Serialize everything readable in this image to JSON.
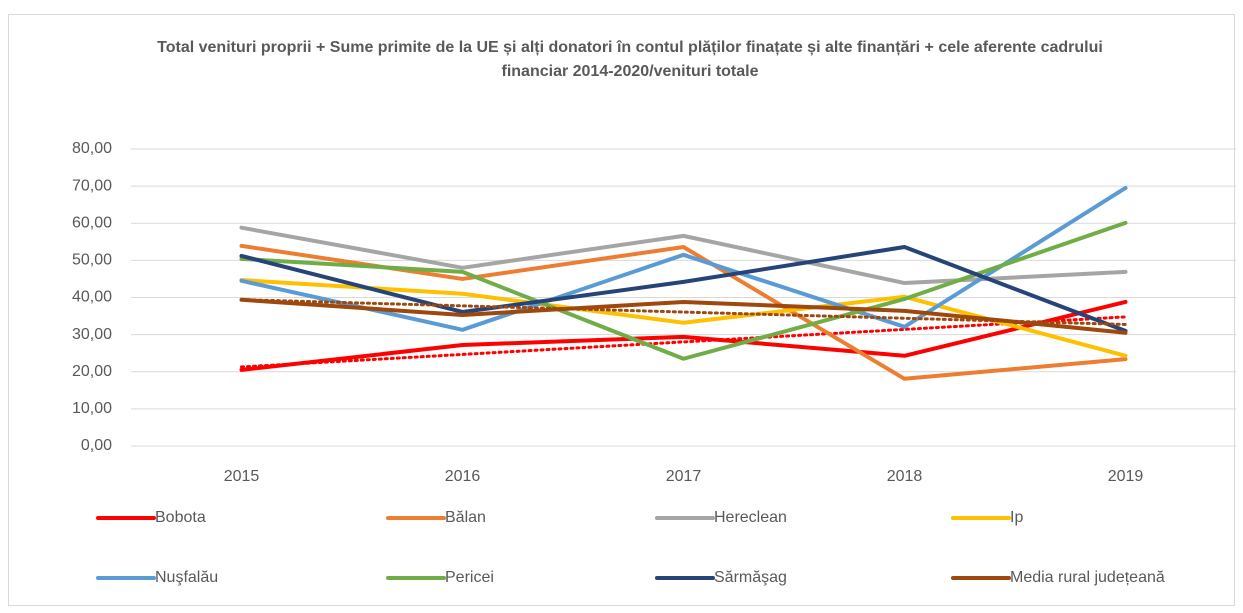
{
  "chart_data": {
    "type": "line",
    "title": "Total venituri proprii + Sume primite de la UE și alți donatori în contul plăților finațate și alte finanțări + cele aferente cadrului financiar 2014-2020/venituri totale",
    "categories": [
      "2015",
      "2016",
      "2017",
      "2018",
      "2019"
    ],
    "series": [
      {
        "name": "Bobota",
        "color": "#ff0000",
        "values": [
          20.5,
          27.2,
          29.4,
          24.3,
          38.8
        ],
        "trendline": true
      },
      {
        "name": "Bălan",
        "color": "#ed7d31",
        "values": [
          53.9,
          45.0,
          53.6,
          18.1,
          23.4
        ]
      },
      {
        "name": "Hereclean",
        "color": "#a5a5a5",
        "values": [
          58.8,
          48.0,
          56.6,
          43.9,
          46.9
        ]
      },
      {
        "name": "Ip",
        "color": "#ffc000",
        "values": [
          44.7,
          41.0,
          33.2,
          40.2,
          24.3
        ]
      },
      {
        "name": "Nuşfalău",
        "color": "#5b9bd5",
        "values": [
          44.5,
          31.3,
          51.5,
          32.1,
          69.5
        ]
      },
      {
        "name": "Pericei",
        "color": "#70ad47",
        "values": [
          50.4,
          46.9,
          23.5,
          39.6,
          60.1
        ]
      },
      {
        "name": "Sărmăşag",
        "color": "#264478",
        "values": [
          51.2,
          36.1,
          44.2,
          53.6,
          31.0
        ]
      },
      {
        "name": "Media rural județeană",
        "color": "#9e480e",
        "values": [
          39.4,
          35.3,
          38.8,
          36.4,
          30.5
        ],
        "trendline": true
      }
    ],
    "ylim": [
      0,
      80
    ],
    "yticks": [
      {
        "value": 0,
        "label": "0,00"
      },
      {
        "value": 10,
        "label": "10,00"
      },
      {
        "value": 20,
        "label": "20,00"
      },
      {
        "value": 30,
        "label": "30,00"
      },
      {
        "value": 40,
        "label": "40,00"
      },
      {
        "value": 50,
        "label": "50,00"
      },
      {
        "value": 60,
        "label": "60,00"
      },
      {
        "value": 70,
        "label": "70,00"
      },
      {
        "value": 80,
        "label": "80,00"
      }
    ],
    "grid": true,
    "legend": "bottom"
  }
}
